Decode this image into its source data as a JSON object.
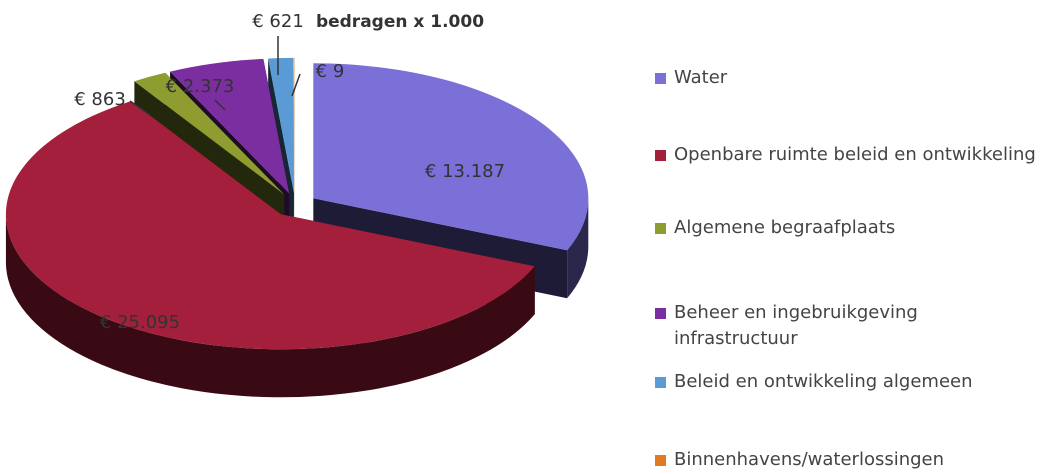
{
  "chart_data": {
    "type": "pie",
    "subtitle": "bedragen x 1.000",
    "categories": [
      "Water",
      "Openbare ruimte beleid en ontwikkeling",
      "Algemene begraafplaats",
      "Beheer en ingebruikgeving infrastructuur",
      "Beleid en ontwikkeling algemeen",
      "Binnenhavens/waterlossingen"
    ],
    "values": [
      13187,
      25095,
      863,
      2373,
      621,
      9
    ],
    "value_labels": [
      "€ 13.187",
      "€ 25.095",
      "€ 863",
      "€ 2.373",
      "€ 621",
      "€ 9"
    ],
    "colors": [
      "#7b6fd8",
      "#a31f3b",
      "#8e9c30",
      "#7b2ea0",
      "#5b9bd5",
      "#e07b24"
    ],
    "legend": "right"
  }
}
